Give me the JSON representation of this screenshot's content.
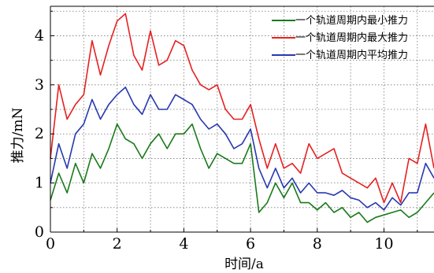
{
  "chart_data": {
    "type": "line",
    "xlabel": "时间/a",
    "ylabel": "推力/mN",
    "xlim": [
      0,
      11.5
    ],
    "ylim": [
      0,
      4.6
    ],
    "x_ticks": [
      "0",
      "2",
      "4",
      "6",
      "8",
      "10"
    ],
    "y_ticks": [
      "0",
      "1",
      "2",
      "3",
      "4"
    ],
    "grid": true,
    "legend_position": "top-right",
    "x": [
      0,
      0.25,
      0.5,
      0.75,
      1.0,
      1.25,
      1.5,
      1.75,
      2.0,
      2.25,
      2.5,
      2.75,
      3.0,
      3.25,
      3.5,
      3.75,
      4.0,
      4.25,
      4.5,
      4.75,
      5.0,
      5.25,
      5.5,
      5.75,
      6.0,
      6.25,
      6.5,
      6.75,
      7.0,
      7.25,
      7.5,
      7.75,
      8.0,
      8.25,
      8.5,
      8.75,
      9.0,
      9.25,
      9.5,
      9.75,
      10.0,
      10.25,
      10.5,
      10.75,
      11.0,
      11.25,
      11.5
    ],
    "series": [
      {
        "name": "一个轨道周期内最小推力",
        "color": "#1a7a1a",
        "values": [
          0.65,
          1.2,
          0.8,
          1.4,
          1.0,
          1.6,
          1.3,
          1.7,
          2.2,
          1.9,
          1.8,
          1.5,
          1.8,
          2.0,
          1.7,
          2.0,
          2.0,
          2.2,
          1.7,
          1.3,
          1.6,
          1.5,
          1.4,
          1.4,
          1.8,
          0.4,
          0.6,
          1.0,
          0.7,
          1.0,
          0.6,
          0.6,
          0.45,
          0.6,
          0.4,
          0.5,
          0.3,
          0.4,
          0.2,
          0.3,
          0.35,
          0.4,
          0.45,
          0.3,
          0.4,
          0.6,
          0.8
        ]
      },
      {
        "name": "一个轨道周期内最大推力",
        "color": "#e62020",
        "values": [
          1.5,
          3.0,
          2.3,
          2.6,
          2.8,
          3.9,
          3.2,
          3.8,
          4.3,
          4.45,
          3.6,
          3.3,
          4.1,
          3.4,
          3.5,
          3.9,
          3.8,
          3.3,
          3.0,
          2.9,
          3.0,
          2.5,
          2.3,
          2.3,
          2.6,
          1.9,
          1.3,
          1.8,
          1.3,
          1.4,
          1.2,
          1.8,
          1.5,
          1.6,
          1.7,
          1.2,
          1.1,
          1.0,
          0.9,
          1.1,
          0.6,
          1.0,
          0.6,
          1.5,
          1.4,
          2.2,
          1.3
        ]
      },
      {
        "name": "一个轨道周期内平均推力",
        "color": "#2838b0",
        "values": [
          1.0,
          1.8,
          1.3,
          2.0,
          2.2,
          2.7,
          2.3,
          2.6,
          2.8,
          2.95,
          2.6,
          2.4,
          2.8,
          2.5,
          2.5,
          2.8,
          2.7,
          2.6,
          2.3,
          2.1,
          2.2,
          2.0,
          1.7,
          1.8,
          2.1,
          1.3,
          0.9,
          1.3,
          0.9,
          1.1,
          0.8,
          1.0,
          0.8,
          0.8,
          0.75,
          0.85,
          0.7,
          0.65,
          0.5,
          0.6,
          0.45,
          0.7,
          0.55,
          0.8,
          0.8,
          1.4,
          1.1
        ]
      }
    ]
  }
}
